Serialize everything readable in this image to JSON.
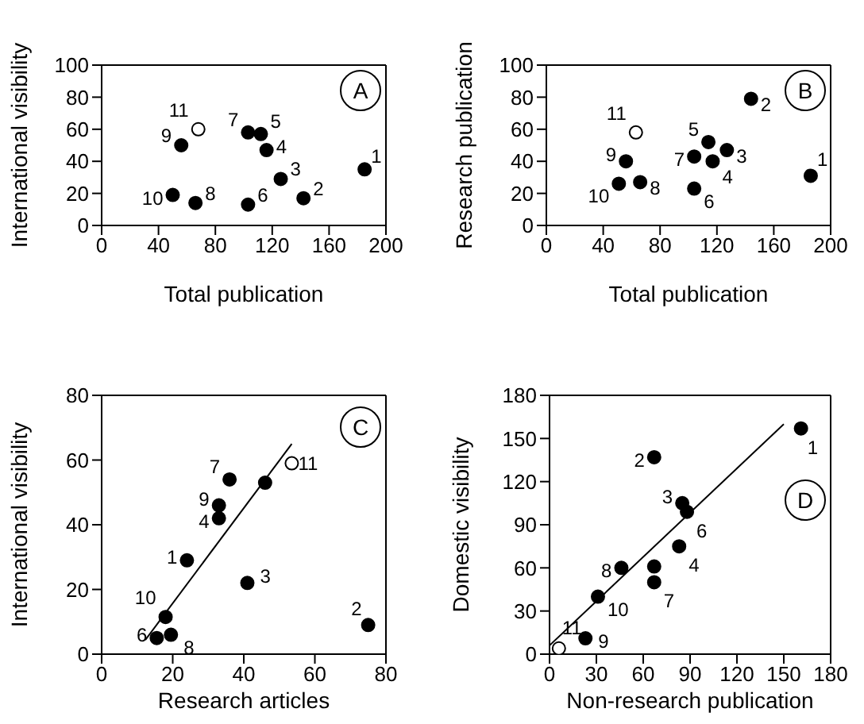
{
  "chart_data": [
    {
      "type": "scatter",
      "xlabel": "Total publication",
      "ylabel": "International visibility",
      "xlim": [
        0,
        200
      ],
      "xticks": [
        0,
        40,
        80,
        120,
        160,
        200
      ],
      "ylim": [
        0,
        100
      ],
      "yticks": [
        0,
        20,
        40,
        60,
        80,
        100
      ],
      "marker": "circle",
      "x": [
        185,
        142,
        126,
        116,
        112,
        103,
        103,
        66,
        56,
        50
      ],
      "series": [
        {
          "color": "#000000",
          "values": [
            35,
            17,
            29,
            47,
            57,
            13,
            58,
            14,
            50,
            19
          ]
        },
        {
          "color": "#ffffff",
          "x": [
            68
          ],
          "values": [
            60
          ]
        }
      ],
      "annotations": [
        "A",
        {
          "text": "1",
          "x": 185,
          "y": 35
        },
        {
          "text": "2",
          "x": 142,
          "y": 17
        },
        {
          "text": "3",
          "x": 126,
          "y": 29
        },
        {
          "text": "4",
          "x": 116,
          "y": 47
        },
        {
          "text": "5",
          "x": 112,
          "y": 57
        },
        {
          "text": "6",
          "x": 103,
          "y": 13
        },
        {
          "text": "7",
          "x": 103,
          "y": 58
        },
        {
          "text": "8",
          "x": 66,
          "y": 14
        },
        {
          "text": "9",
          "x": 56,
          "y": 50
        },
        {
          "text": "10",
          "x": 50,
          "y": 19
        },
        {
          "text": "11",
          "x": 68,
          "y": 60
        }
      ]
    },
    {
      "type": "scatter",
      "xlabel": "Total publication",
      "ylabel": "Research publication",
      "xlim": [
        0,
        200
      ],
      "xticks": [
        0,
        40,
        80,
        120,
        160,
        200
      ],
      "ylim": [
        0,
        100
      ],
      "yticks": [
        0,
        20,
        40,
        60,
        80,
        100
      ],
      "marker": "circle",
      "x": [
        186,
        144,
        127,
        117,
        114,
        104,
        104,
        66,
        56,
        51
      ],
      "series": [
        {
          "color": "#000000",
          "values": [
            31,
            79,
            47,
            40,
            52,
            23,
            43,
            27,
            40,
            26
          ]
        },
        {
          "color": "#ffffff",
          "x": [
            63
          ],
          "values": [
            58
          ]
        }
      ],
      "annotations": [
        "B",
        {
          "text": "1",
          "x": 186,
          "y": 31
        },
        {
          "text": "2",
          "x": 144,
          "y": 79
        },
        {
          "text": "3",
          "x": 127,
          "y": 47
        },
        {
          "text": "4",
          "x": 117,
          "y": 40
        },
        {
          "text": "5",
          "x": 114,
          "y": 52
        },
        {
          "text": "6",
          "x": 104,
          "y": 23
        },
        {
          "text": "7",
          "x": 104,
          "y": 43
        },
        {
          "text": "8",
          "x": 66,
          "y": 27
        },
        {
          "text": "9",
          "x": 56,
          "y": 40
        },
        {
          "text": "10",
          "x": 51,
          "y": 26
        },
        {
          "text": "11",
          "x": 63,
          "y": 58
        }
      ]
    },
    {
      "type": "scatter",
      "xlabel": "Research articles",
      "ylabel": "International visibility",
      "xlim": [
        0,
        80
      ],
      "xticks": [
        0,
        20,
        40,
        60,
        80
      ],
      "ylim": [
        0,
        80
      ],
      "yticks": [
        0,
        20,
        40,
        60,
        80
      ],
      "marker": "circle",
      "x": [
        24,
        75,
        41,
        33,
        46,
        15.5,
        36,
        19.5,
        33,
        18
      ],
      "series": [
        {
          "color": "#000000",
          "values": [
            29,
            9,
            22,
            42,
            53,
            5,
            54,
            6,
            46,
            11.5
          ]
        },
        {
          "color": "#ffffff",
          "x": [
            53.5
          ],
          "values": [
            59
          ]
        },
        {
          "type": "line",
          "marker": "none",
          "color": "#000000",
          "x": [
            12.3,
            53.5
          ],
          "values": [
            4.4,
            65
          ]
        }
      ],
      "annotations": [
        "C",
        {
          "text": "1",
          "x": 24,
          "y": 29
        },
        {
          "text": "2",
          "x": 75,
          "y": 9
        },
        {
          "text": "3",
          "x": 41,
          "y": 22
        },
        {
          "text": "4",
          "x": 33,
          "y": 42
        },
        {
          "text": "6",
          "x": 15.5,
          "y": 5
        },
        {
          "text": "7",
          "x": 36,
          "y": 54
        },
        {
          "text": "8",
          "x": 19.5,
          "y": 6
        },
        {
          "text": "9",
          "x": 33,
          "y": 46
        },
        {
          "text": "10",
          "x": 18,
          "y": 11.5
        },
        {
          "text": "11",
          "x": 53.5,
          "y": 59
        }
      ]
    },
    {
      "type": "scatter",
      "xlabel": "Non-research publication",
      "ylabel": "Domestic visibility",
      "xlim": [
        0,
        180
      ],
      "xticks": [
        0,
        30,
        60,
        90,
        120,
        150,
        180
      ],
      "ylim": [
        0,
        180
      ],
      "yticks": [
        0,
        30,
        60,
        90,
        120,
        150,
        180
      ],
      "marker": "circle",
      "x": [
        161,
        67,
        85,
        83,
        67,
        88,
        67,
        46,
        23,
        31
      ],
      "series": [
        {
          "color": "#000000",
          "values": [
            157,
            137,
            105,
            75,
            61,
            99,
            50,
            60,
            11,
            40
          ]
        },
        {
          "color": "#ffffff",
          "x": [
            6
          ],
          "values": [
            4
          ]
        },
        {
          "type": "line",
          "marker": "none",
          "color": "#000000",
          "x": [
            0,
            150
          ],
          "values": [
            6,
            160
          ]
        }
      ],
      "annotations": [
        "D",
        {
          "text": "1",
          "x": 161,
          "y": 157
        },
        {
          "text": "2",
          "x": 67,
          "y": 137
        },
        {
          "text": "3",
          "x": 85,
          "y": 105
        },
        {
          "text": "4",
          "x": 83,
          "y": 75
        },
        {
          "text": "6",
          "x": 88,
          "y": 99
        },
        {
          "text": "7",
          "x": 67,
          "y": 50
        },
        {
          "text": "8",
          "x": 46,
          "y": 60
        },
        {
          "text": "9",
          "x": 23,
          "y": 11
        },
        {
          "text": "10",
          "x": 31,
          "y": 40
        },
        {
          "text": "11",
          "x": 6,
          "y": 4
        }
      ]
    }
  ]
}
